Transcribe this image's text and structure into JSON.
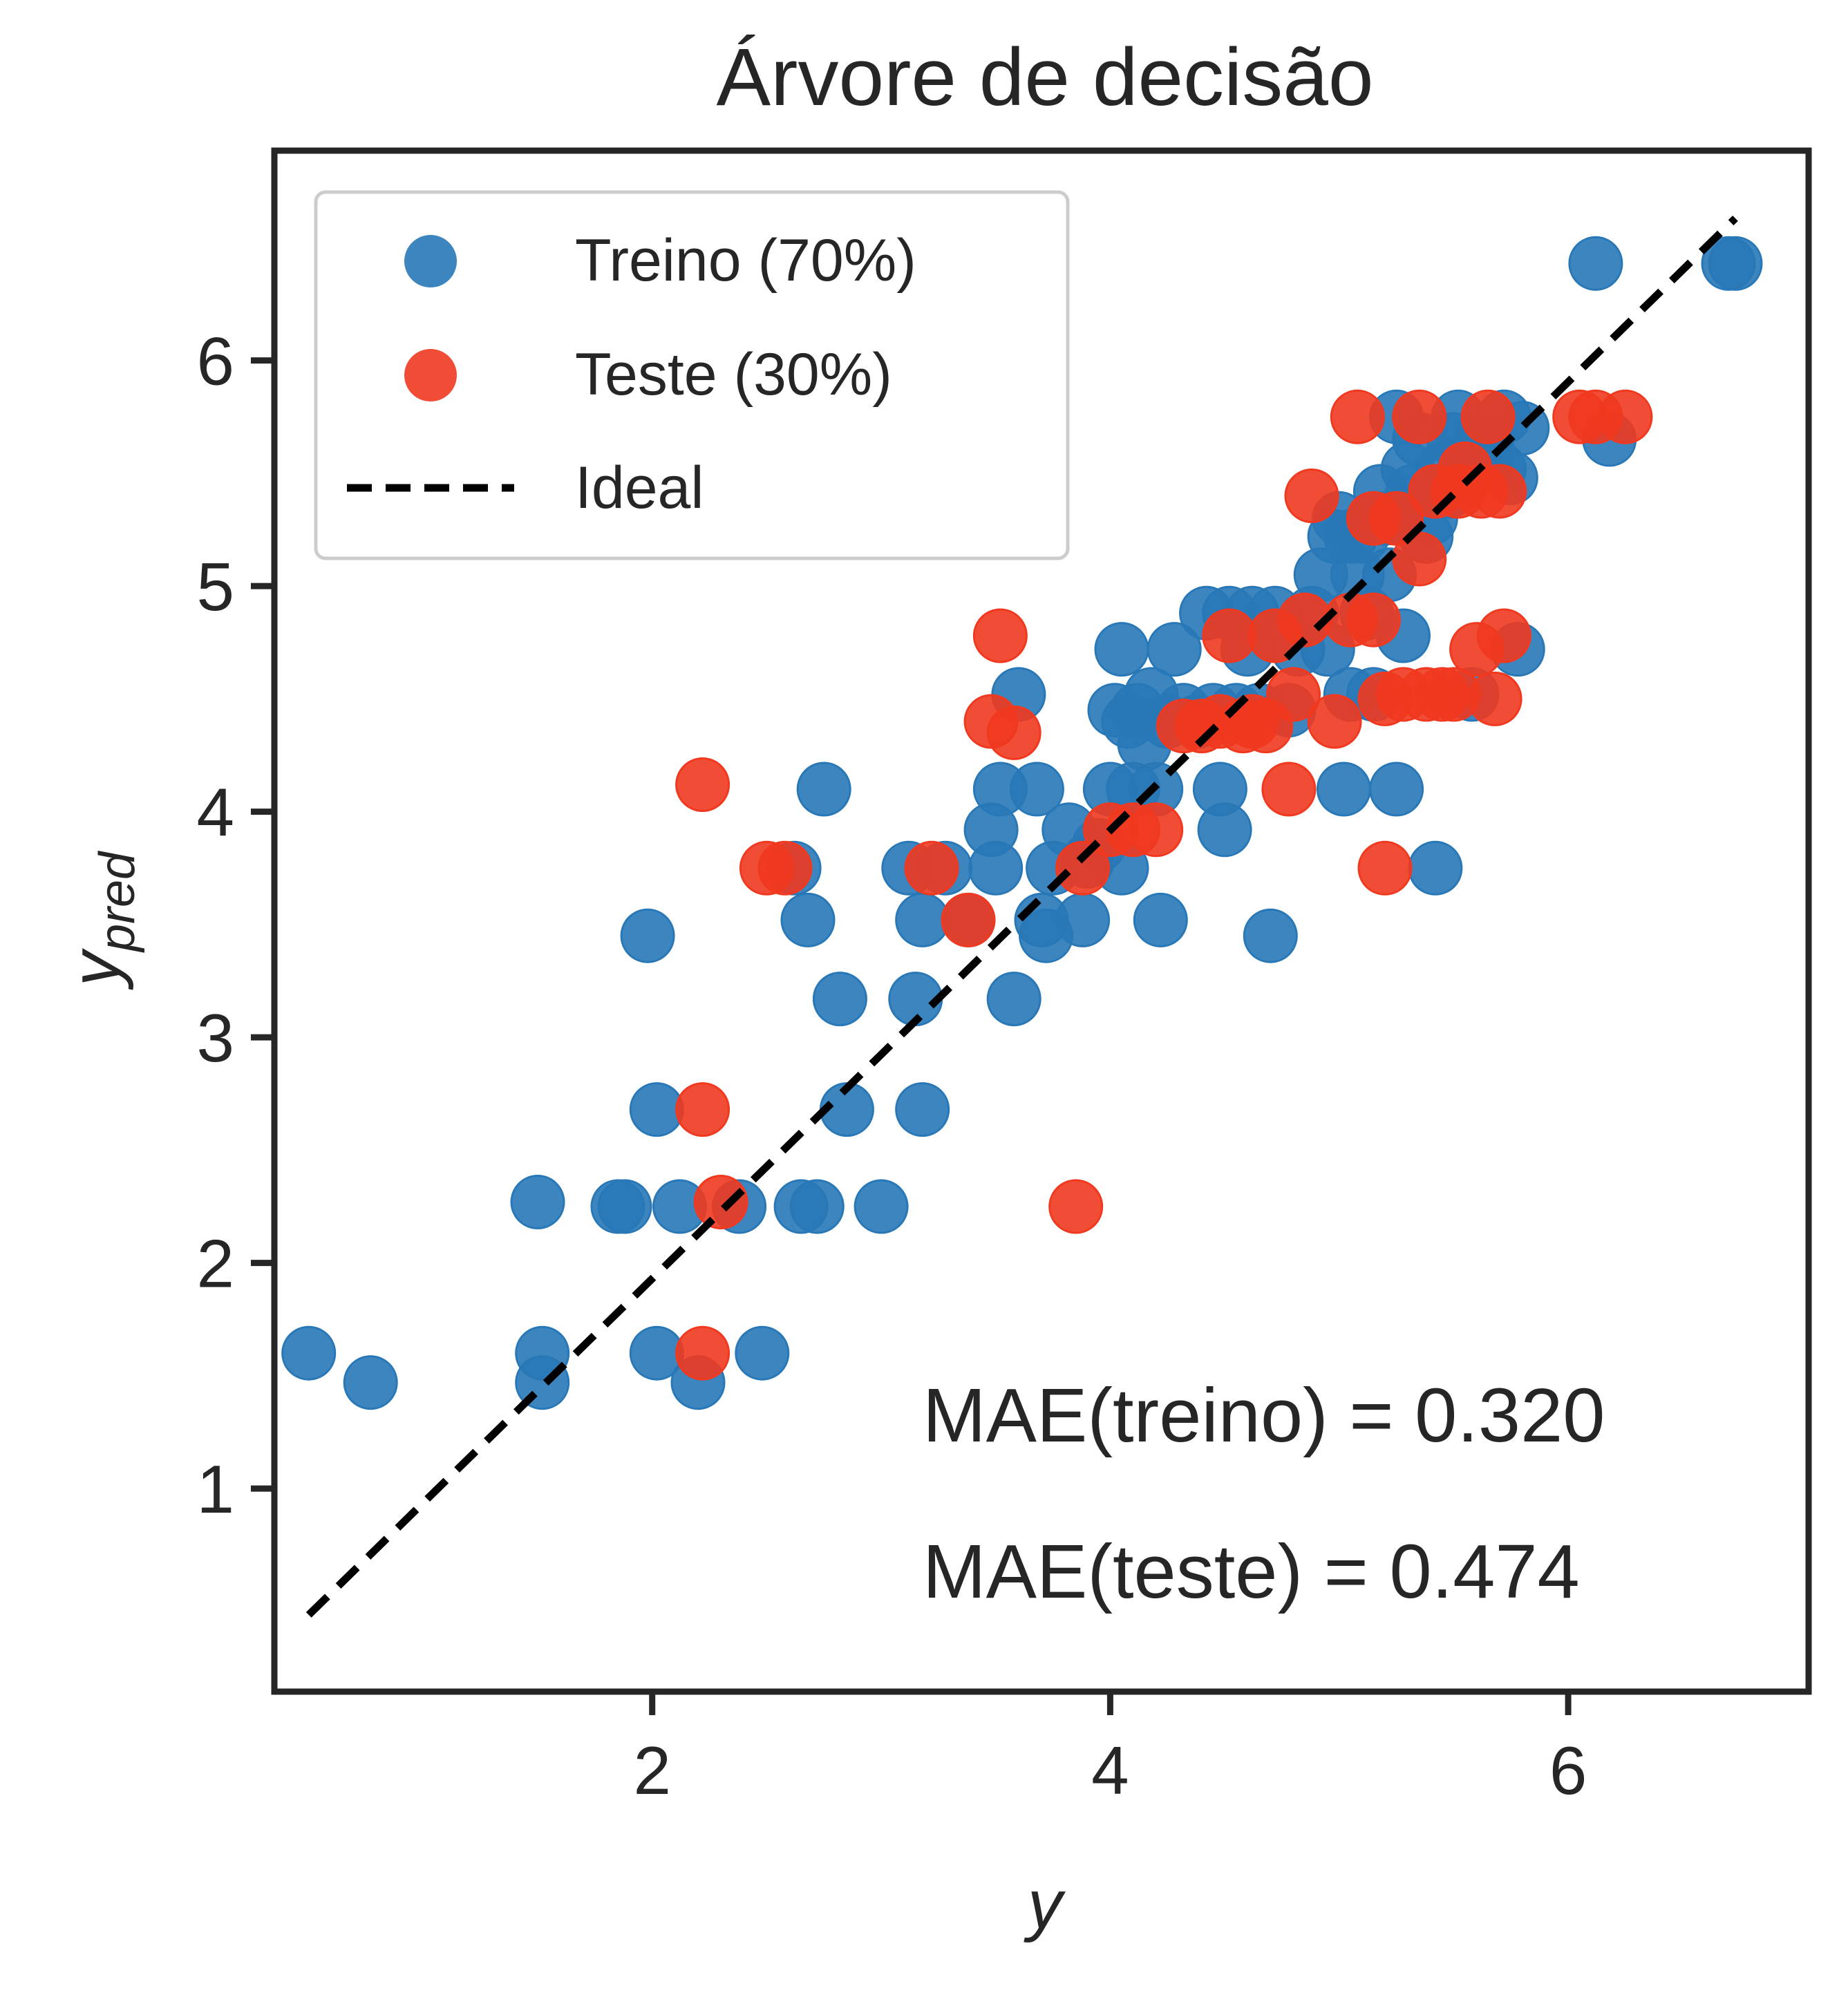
{
  "chart_data": {
    "type": "scatter",
    "title": "Árvore de decisão",
    "xlabel": "y",
    "ylabel": "y_pred",
    "ylabel_main": "y",
    "ylabel_sub": "pred",
    "xlim": [
      0.35,
      7.05
    ],
    "ylim": [
      0.1,
      6.93
    ],
    "xticks": [
      2,
      4,
      6
    ],
    "yticks": [
      1,
      2,
      3,
      4,
      5,
      6
    ],
    "grid": false,
    "legend_position": "upper-left",
    "colors": {
      "train": "#2878b8",
      "test": "#f0391f",
      "ideal": "#000000",
      "axes": "#262626"
    },
    "series": [
      {
        "name": "Treino (70%)",
        "color": "#2878b8",
        "points": [
          [
            0.5,
            1.6
          ],
          [
            0.77,
            1.47
          ],
          [
            1.5,
            2.27
          ],
          [
            1.52,
            1.6
          ],
          [
            1.52,
            1.47
          ],
          [
            1.85,
            2.25
          ],
          [
            1.88,
            2.25
          ],
          [
            1.98,
            3.45
          ],
          [
            2.02,
            2.68
          ],
          [
            2.02,
            1.6
          ],
          [
            2.12,
            2.25
          ],
          [
            2.2,
            1.47
          ],
          [
            2.38,
            2.25
          ],
          [
            2.48,
            1.6
          ],
          [
            2.62,
            3.75
          ],
          [
            2.65,
            2.25
          ],
          [
            2.68,
            3.52
          ],
          [
            2.72,
            2.25
          ],
          [
            2.75,
            4.1
          ],
          [
            2.82,
            3.17
          ],
          [
            2.85,
            2.68
          ],
          [
            3.0,
            2.25
          ],
          [
            3.12,
            3.75
          ],
          [
            3.15,
            3.17
          ],
          [
            3.18,
            3.52
          ],
          [
            3.18,
            2.68
          ],
          [
            3.28,
            3.75
          ],
          [
            3.38,
            3.52
          ],
          [
            3.48,
            3.92
          ],
          [
            3.5,
            3.75
          ],
          [
            3.52,
            4.1
          ],
          [
            3.58,
            3.17
          ],
          [
            3.6,
            4.52
          ],
          [
            3.68,
            4.1
          ],
          [
            3.7,
            3.52
          ],
          [
            3.72,
            3.45
          ],
          [
            3.75,
            3.75
          ],
          [
            3.82,
            3.92
          ],
          [
            3.88,
            3.52
          ],
          [
            3.9,
            3.78
          ],
          [
            3.95,
            3.85
          ],
          [
            4.0,
            4.1
          ],
          [
            4.02,
            4.45
          ],
          [
            4.05,
            4.72
          ],
          [
            4.05,
            3.75
          ],
          [
            4.08,
            4.4
          ],
          [
            4.1,
            4.1
          ],
          [
            4.12,
            4.45
          ],
          [
            4.15,
            4.3
          ],
          [
            4.18,
            4.52
          ],
          [
            4.2,
            4.1
          ],
          [
            4.22,
            3.52
          ],
          [
            4.25,
            4.4
          ],
          [
            4.28,
            4.72
          ],
          [
            4.32,
            4.45
          ],
          [
            4.38,
            4.4
          ],
          [
            4.42,
            4.88
          ],
          [
            4.45,
            4.45
          ],
          [
            4.48,
            4.1
          ],
          [
            4.5,
            3.92
          ],
          [
            4.52,
            4.88
          ],
          [
            4.55,
            4.45
          ],
          [
            4.6,
            4.72
          ],
          [
            4.62,
            4.88
          ],
          [
            4.65,
            4.45
          ],
          [
            4.7,
            3.45
          ],
          [
            4.72,
            4.88
          ],
          [
            4.78,
            4.45
          ],
          [
            4.82,
            4.72
          ],
          [
            4.88,
            4.88
          ],
          [
            4.92,
            5.05
          ],
          [
            4.95,
            4.72
          ],
          [
            4.98,
            5.22
          ],
          [
            5.0,
            5.3
          ],
          [
            5.02,
            4.1
          ],
          [
            5.05,
            4.52
          ],
          [
            5.05,
            5.22
          ],
          [
            5.08,
            5.05
          ],
          [
            5.1,
            5.22
          ],
          [
            5.12,
            4.88
          ],
          [
            5.15,
            4.52
          ],
          [
            5.18,
            5.42
          ],
          [
            5.2,
            5.3
          ],
          [
            5.22,
            5.05
          ],
          [
            5.25,
            4.1
          ],
          [
            5.25,
            5.75
          ],
          [
            5.28,
            4.78
          ],
          [
            5.3,
            5.52
          ],
          [
            5.32,
            5.42
          ],
          [
            5.35,
            5.65
          ],
          [
            5.38,
            5.22
          ],
          [
            5.4,
            5.3
          ],
          [
            5.42,
            3.75
          ],
          [
            5.45,
            5.52
          ],
          [
            5.48,
            5.42
          ],
          [
            5.5,
            5.65
          ],
          [
            5.52,
            5.75
          ],
          [
            5.55,
            5.55
          ],
          [
            5.58,
            4.52
          ],
          [
            5.62,
            5.65
          ],
          [
            5.65,
            5.6
          ],
          [
            5.7,
            5.52
          ],
          [
            5.72,
            5.75
          ],
          [
            5.75,
            5.48
          ],
          [
            5.78,
            4.72
          ],
          [
            5.8,
            5.7
          ],
          [
            6.12,
            6.43
          ],
          [
            6.18,
            5.65
          ],
          [
            6.7,
            6.43
          ],
          [
            6.73,
            6.43
          ]
        ]
      },
      {
        "name": "Teste (30%)",
        "color": "#f0391f",
        "points": [
          [
            2.22,
            4.12
          ],
          [
            2.22,
            2.68
          ],
          [
            2.22,
            1.6
          ],
          [
            2.3,
            2.27
          ],
          [
            2.5,
            3.75
          ],
          [
            2.58,
            3.75
          ],
          [
            3.22,
            3.75
          ],
          [
            3.38,
            3.52
          ],
          [
            3.48,
            4.4
          ],
          [
            3.52,
            4.78
          ],
          [
            3.58,
            4.35
          ],
          [
            3.85,
            2.25
          ],
          [
            3.88,
            3.75
          ],
          [
            4.0,
            3.92
          ],
          [
            4.1,
            3.92
          ],
          [
            4.2,
            3.92
          ],
          [
            4.32,
            4.38
          ],
          [
            4.4,
            4.38
          ],
          [
            4.48,
            4.4
          ],
          [
            4.52,
            4.78
          ],
          [
            4.58,
            4.38
          ],
          [
            4.62,
            4.4
          ],
          [
            4.68,
            4.38
          ],
          [
            4.72,
            4.78
          ],
          [
            4.78,
            4.1
          ],
          [
            4.8,
            4.52
          ],
          [
            4.85,
            4.85
          ],
          [
            4.88,
            5.4
          ],
          [
            4.98,
            4.4
          ],
          [
            5.05,
            4.85
          ],
          [
            5.08,
            5.75
          ],
          [
            5.15,
            5.3
          ],
          [
            5.15,
            4.85
          ],
          [
            5.2,
            4.5
          ],
          [
            5.2,
            3.75
          ],
          [
            5.25,
            5.3
          ],
          [
            5.28,
            4.52
          ],
          [
            5.35,
            5.75
          ],
          [
            5.35,
            5.12
          ],
          [
            5.38,
            4.52
          ],
          [
            5.42,
            5.42
          ],
          [
            5.45,
            4.52
          ],
          [
            5.5,
            4.52
          ],
          [
            5.52,
            5.42
          ],
          [
            5.55,
            5.52
          ],
          [
            5.6,
            4.72
          ],
          [
            5.62,
            5.42
          ],
          [
            5.65,
            5.75
          ],
          [
            5.68,
            4.5
          ],
          [
            5.7,
            5.42
          ],
          [
            5.72,
            4.78
          ],
          [
            6.05,
            5.75
          ],
          [
            6.12,
            5.75
          ],
          [
            6.25,
            5.75
          ]
        ]
      }
    ],
    "ideal_line": {
      "name": "Ideal",
      "x": [
        0.5,
        6.73
      ],
      "y": [
        0.44,
        6.63
      ]
    },
    "annotations": [
      "MAE(treino) = 0.320",
      "MAE(teste) = 0.474"
    ]
  }
}
